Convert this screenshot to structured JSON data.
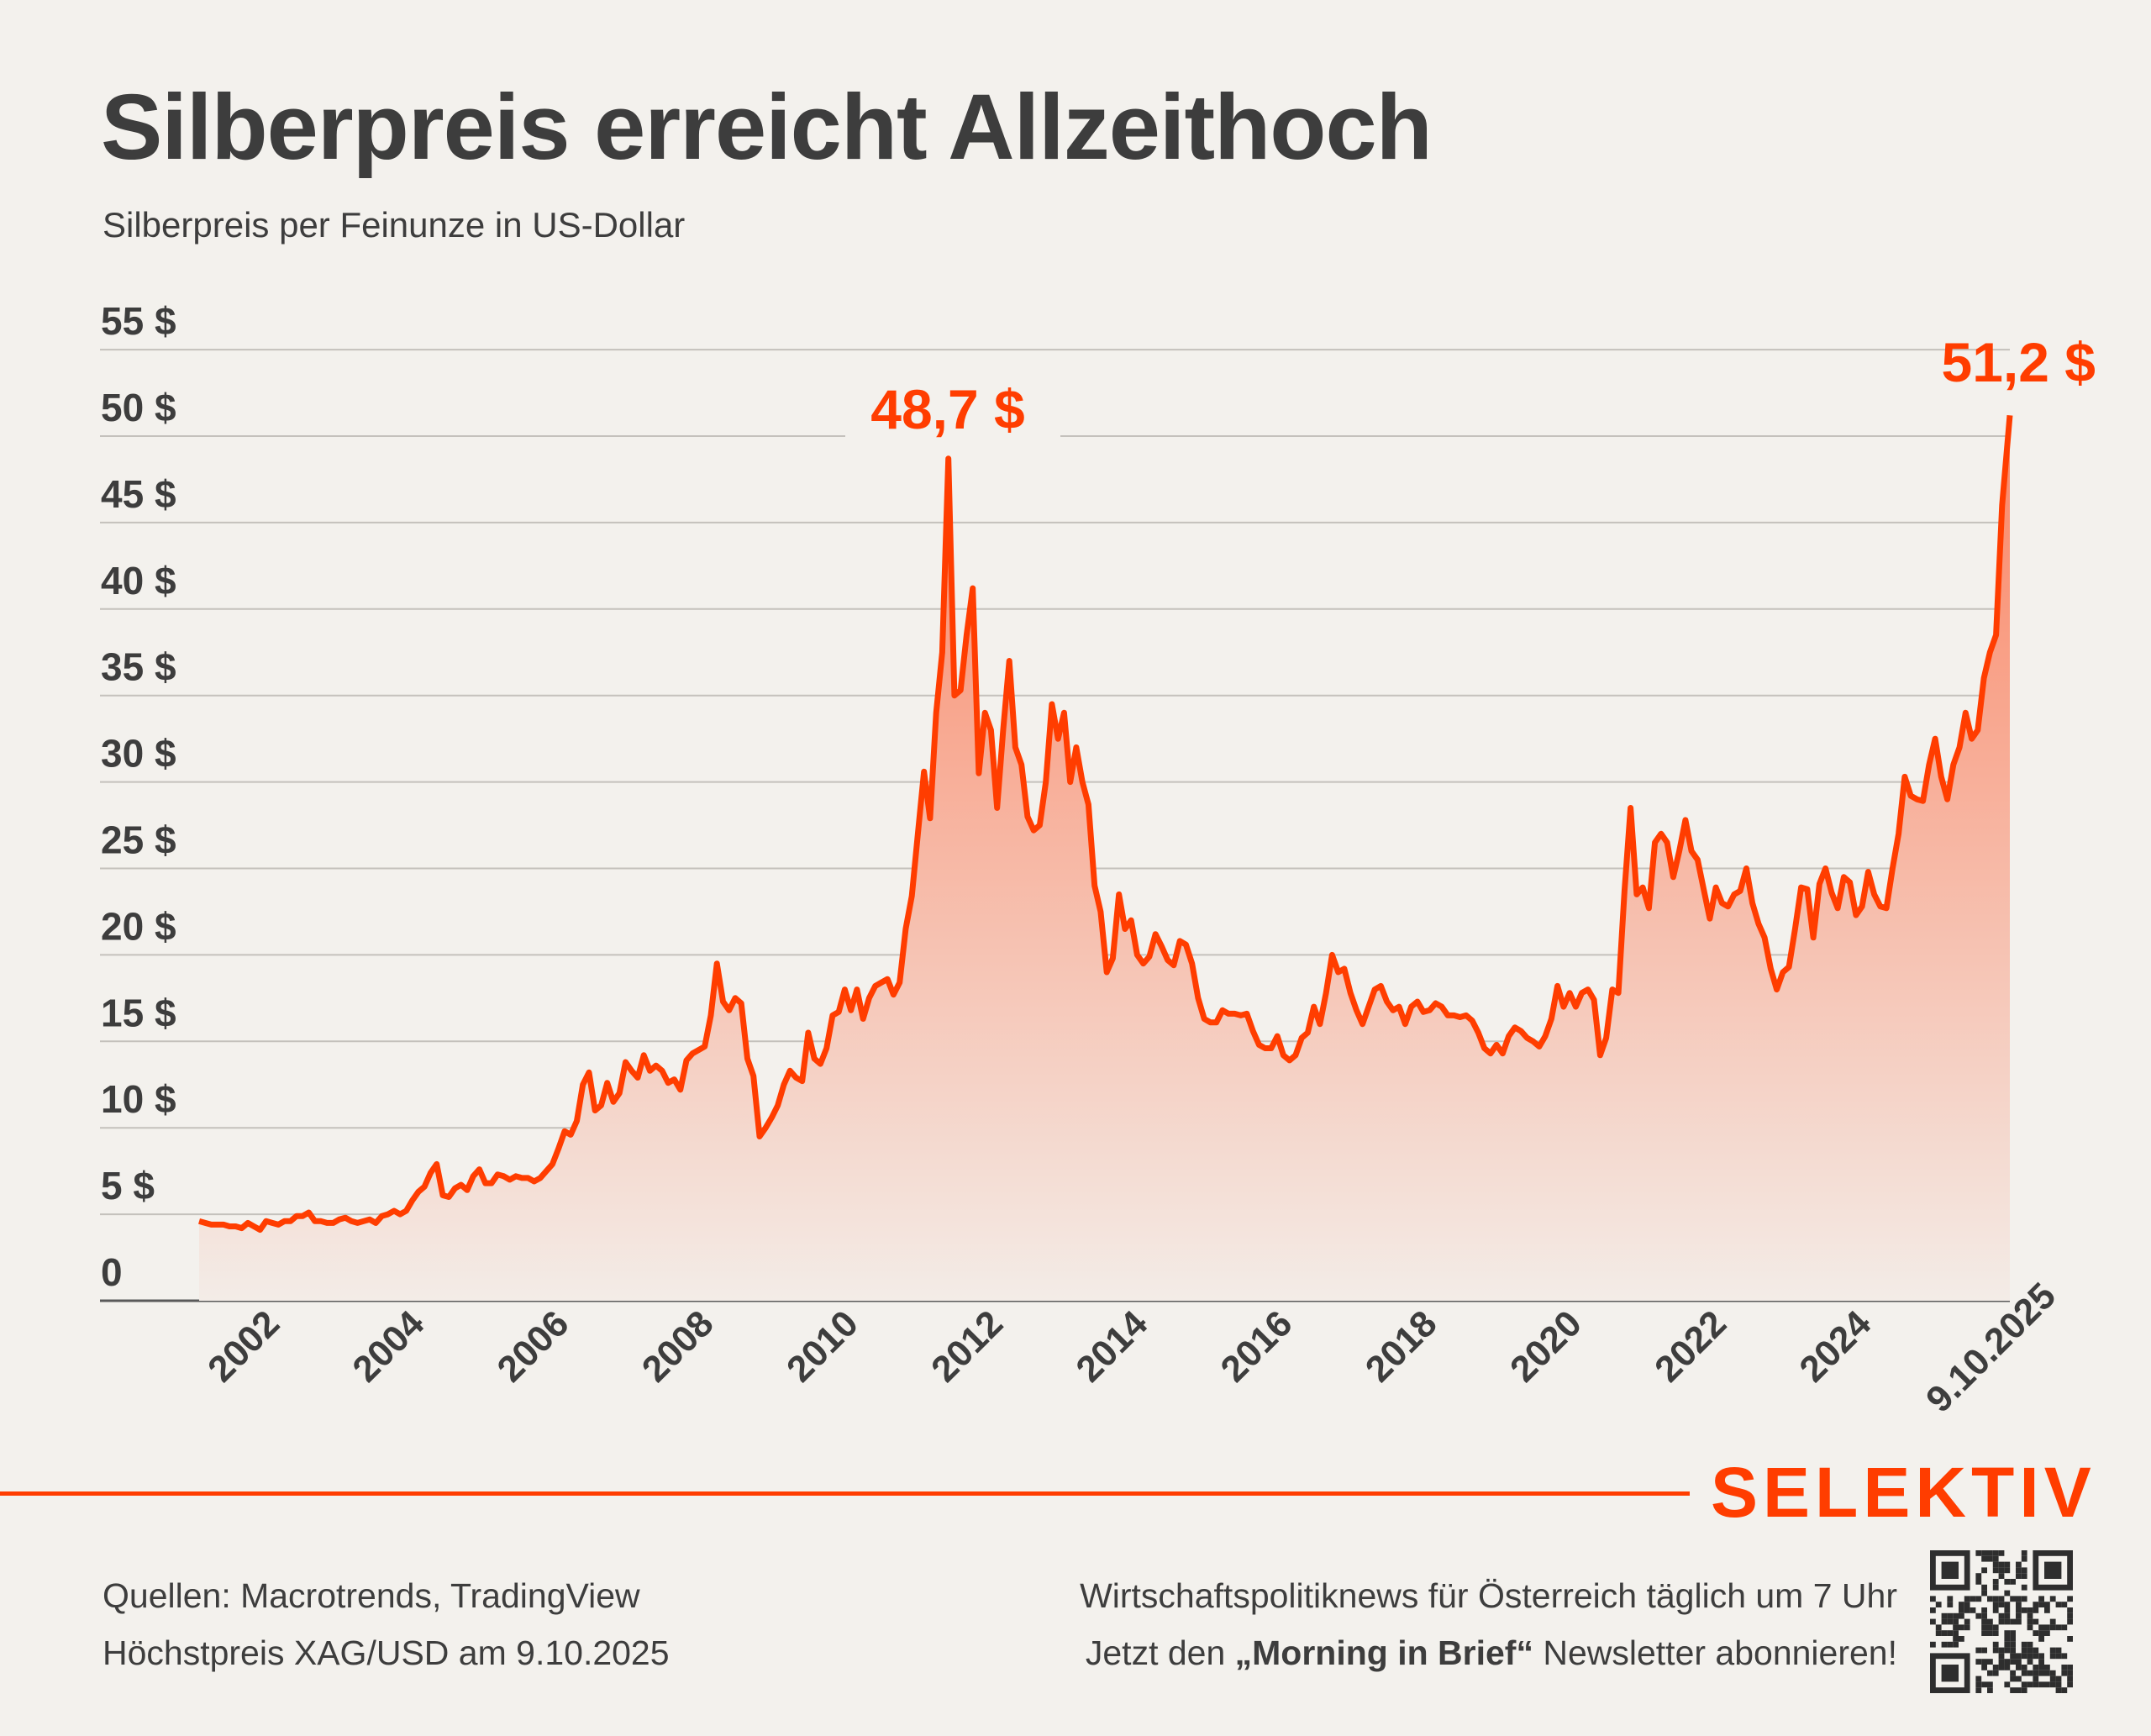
{
  "title": "Silberpreis erreicht Allzeithoch",
  "subtitle": "Silberpreis per Feinunze in US-Dollar",
  "chart_data": {
    "type": "area",
    "title": "Silberpreis erreicht Allzeithoch",
    "subtitle": "Silberpreis per Feinunze in US-Dollar",
    "ylim": [
      0,
      55
    ],
    "yticks": [
      0,
      5,
      10,
      15,
      20,
      25,
      30,
      35,
      40,
      45,
      50,
      55
    ],
    "ytick_labels": [
      "0",
      "5 $",
      "10 $",
      "15 $",
      "20 $",
      "25 $",
      "30 $",
      "35 $",
      "40 $",
      "45 $",
      "50 $",
      "55 $"
    ],
    "xtick_labels": [
      "2002",
      "2004",
      "2006",
      "2008",
      "2010",
      "2012",
      "2014",
      "2016",
      "2018",
      "2020",
      "2022",
      "2024",
      "9.10.2025"
    ],
    "grid": true,
    "line_color": "#ff3d00",
    "fill_color_top": "#fb8463",
    "fill_color_bottom": "#f3ece7",
    "annotations": [
      {
        "label": "48,7 $",
        "x": "2011-04",
        "y": 48.7
      },
      {
        "label": "51,2 $",
        "x": "2025-10-09",
        "y": 51.2
      }
    ],
    "start": "2001-01",
    "end": "2025-10-09",
    "monthly_values": {
      "2001": [
        4.6,
        4.5,
        4.4,
        4.4,
        4.4,
        4.3,
        4.3,
        4.2,
        4.5,
        4.3,
        4.1,
        4.6
      ],
      "2002": [
        4.5,
        4.4,
        4.6,
        4.6,
        4.9,
        4.9,
        5.1,
        4.6,
        4.6,
        4.5,
        4.5,
        4.7
      ],
      "2003": [
        4.8,
        4.6,
        4.5,
        4.6,
        4.7,
        4.5,
        4.9,
        5.0,
        5.2,
        5.0,
        5.2,
        5.8
      ],
      "2004": [
        6.3,
        6.6,
        7.4,
        7.9,
        6.1,
        6.0,
        6.5,
        6.7,
        6.4,
        7.2,
        7.6,
        6.8
      ],
      "2005": [
        6.8,
        7.3,
        7.2,
        7.0,
        7.2,
        7.1,
        7.1,
        6.9,
        7.1,
        7.5,
        7.9,
        8.8
      ],
      "2006": [
        9.8,
        9.6,
        10.4,
        12.5,
        13.2,
        11.0,
        11.3,
        12.6,
        11.5,
        12.0,
        13.8,
        13.3
      ],
      "2007": [
        12.9,
        14.2,
        13.3,
        13.6,
        13.3,
        12.6,
        12.8,
        12.2,
        13.9,
        14.3,
        14.5,
        14.7
      ],
      "2008": [
        16.5,
        19.5,
        17.3,
        16.8,
        17.5,
        17.2,
        14.0,
        13.0,
        9.5,
        10.0,
        10.6,
        11.3
      ],
      "2009": [
        12.5,
        13.3,
        12.9,
        12.7,
        15.5,
        14.0,
        13.7,
        14.6,
        16.5,
        16.7,
        18.0,
        16.8
      ],
      "2010": [
        18.0,
        16.3,
        17.5,
        18.2,
        18.4,
        18.6,
        17.7,
        18.4,
        21.5,
        23.4,
        27.0,
        30.6
      ],
      "2011": [
        27.9,
        34.0,
        37.5,
        48.7,
        35.0,
        35.3,
        38.5,
        41.2,
        30.5,
        34.0,
        33.0,
        28.5
      ],
      "2012": [
        33.0,
        37.0,
        32.0,
        31.0,
        28.0,
        27.2,
        27.5,
        30.0,
        34.5,
        32.5,
        34.0,
        30.0
      ],
      "2013": [
        32.0,
        30.0,
        28.7,
        24.0,
        22.5,
        19.0,
        19.8,
        23.5,
        21.5,
        22.0,
        20.0,
        19.5
      ],
      "2014": [
        19.9,
        21.2,
        20.5,
        19.7,
        19.4,
        20.8,
        20.6,
        19.5,
        17.5,
        16.3,
        16.1,
        16.1
      ],
      "2015": [
        16.8,
        16.6,
        16.6,
        16.5,
        16.6,
        15.6,
        14.8,
        14.6,
        14.6,
        15.3,
        14.2,
        13.9
      ],
      "2016": [
        14.2,
        15.2,
        15.5,
        17.0,
        16.0,
        17.8,
        20.0,
        19.0,
        19.2,
        17.8,
        16.8,
        16.0
      ],
      "2017": [
        17.0,
        18.0,
        18.2,
        17.3,
        16.8,
        17.0,
        16.0,
        17.0,
        17.3,
        16.7,
        16.8,
        17.2
      ],
      "2018": [
        17.0,
        16.5,
        16.5,
        16.4,
        16.5,
        16.2,
        15.5,
        14.6,
        14.3,
        14.8,
        14.3,
        15.3
      ],
      "2019": [
        15.8,
        15.6,
        15.2,
        15.0,
        14.7,
        15.3,
        16.3,
        18.2,
        17.0,
        17.8,
        17.0,
        17.8
      ],
      "2020": [
        18.0,
        17.4,
        14.2,
        15.2,
        18.0,
        17.8,
        23.7,
        28.5,
        23.5,
        23.9,
        22.7,
        26.5
      ],
      "2021": [
        27.0,
        26.5,
        24.5,
        26.0,
        27.8,
        26.0,
        25.5,
        23.8,
        22.1,
        23.9,
        23.0,
        22.8
      ],
      "2022": [
        23.5,
        23.7,
        25.0,
        23.0,
        21.8,
        21.0,
        19.2,
        18.0,
        19.0,
        19.3,
        21.5,
        23.9
      ],
      "2023": [
        23.8,
        21.0,
        24.1,
        25.0,
        23.6,
        22.7,
        24.5,
        24.2,
        22.3,
        22.8,
        24.8,
        23.5
      ],
      "2024": [
        22.8,
        22.7,
        25.0,
        27.0,
        30.3,
        29.2,
        29.0,
        28.9,
        31.0,
        32.5,
        30.3,
        29.0
      ],
      "2025": [
        31.0,
        32.0,
        34.0,
        32.5,
        33.0,
        36.0,
        37.5,
        38.5,
        46.0,
        51.2
      ]
    }
  },
  "footer": {
    "brand": "SELEKTIV",
    "sources": "Quellen: Macrotrends, TradingView",
    "note": "Höchstpreis XAG/USD am 9.10.2025",
    "promo_line1": "Wirtschaftspolitiknews für Österreich täglich um 7 Uhr",
    "promo_line2_pre": "Jetzt den ",
    "promo_line2_bold": "„Morning in Brief“",
    "promo_line2_post": " Newsletter abonnieren!",
    "qr_icon": "qr-code-icon"
  }
}
